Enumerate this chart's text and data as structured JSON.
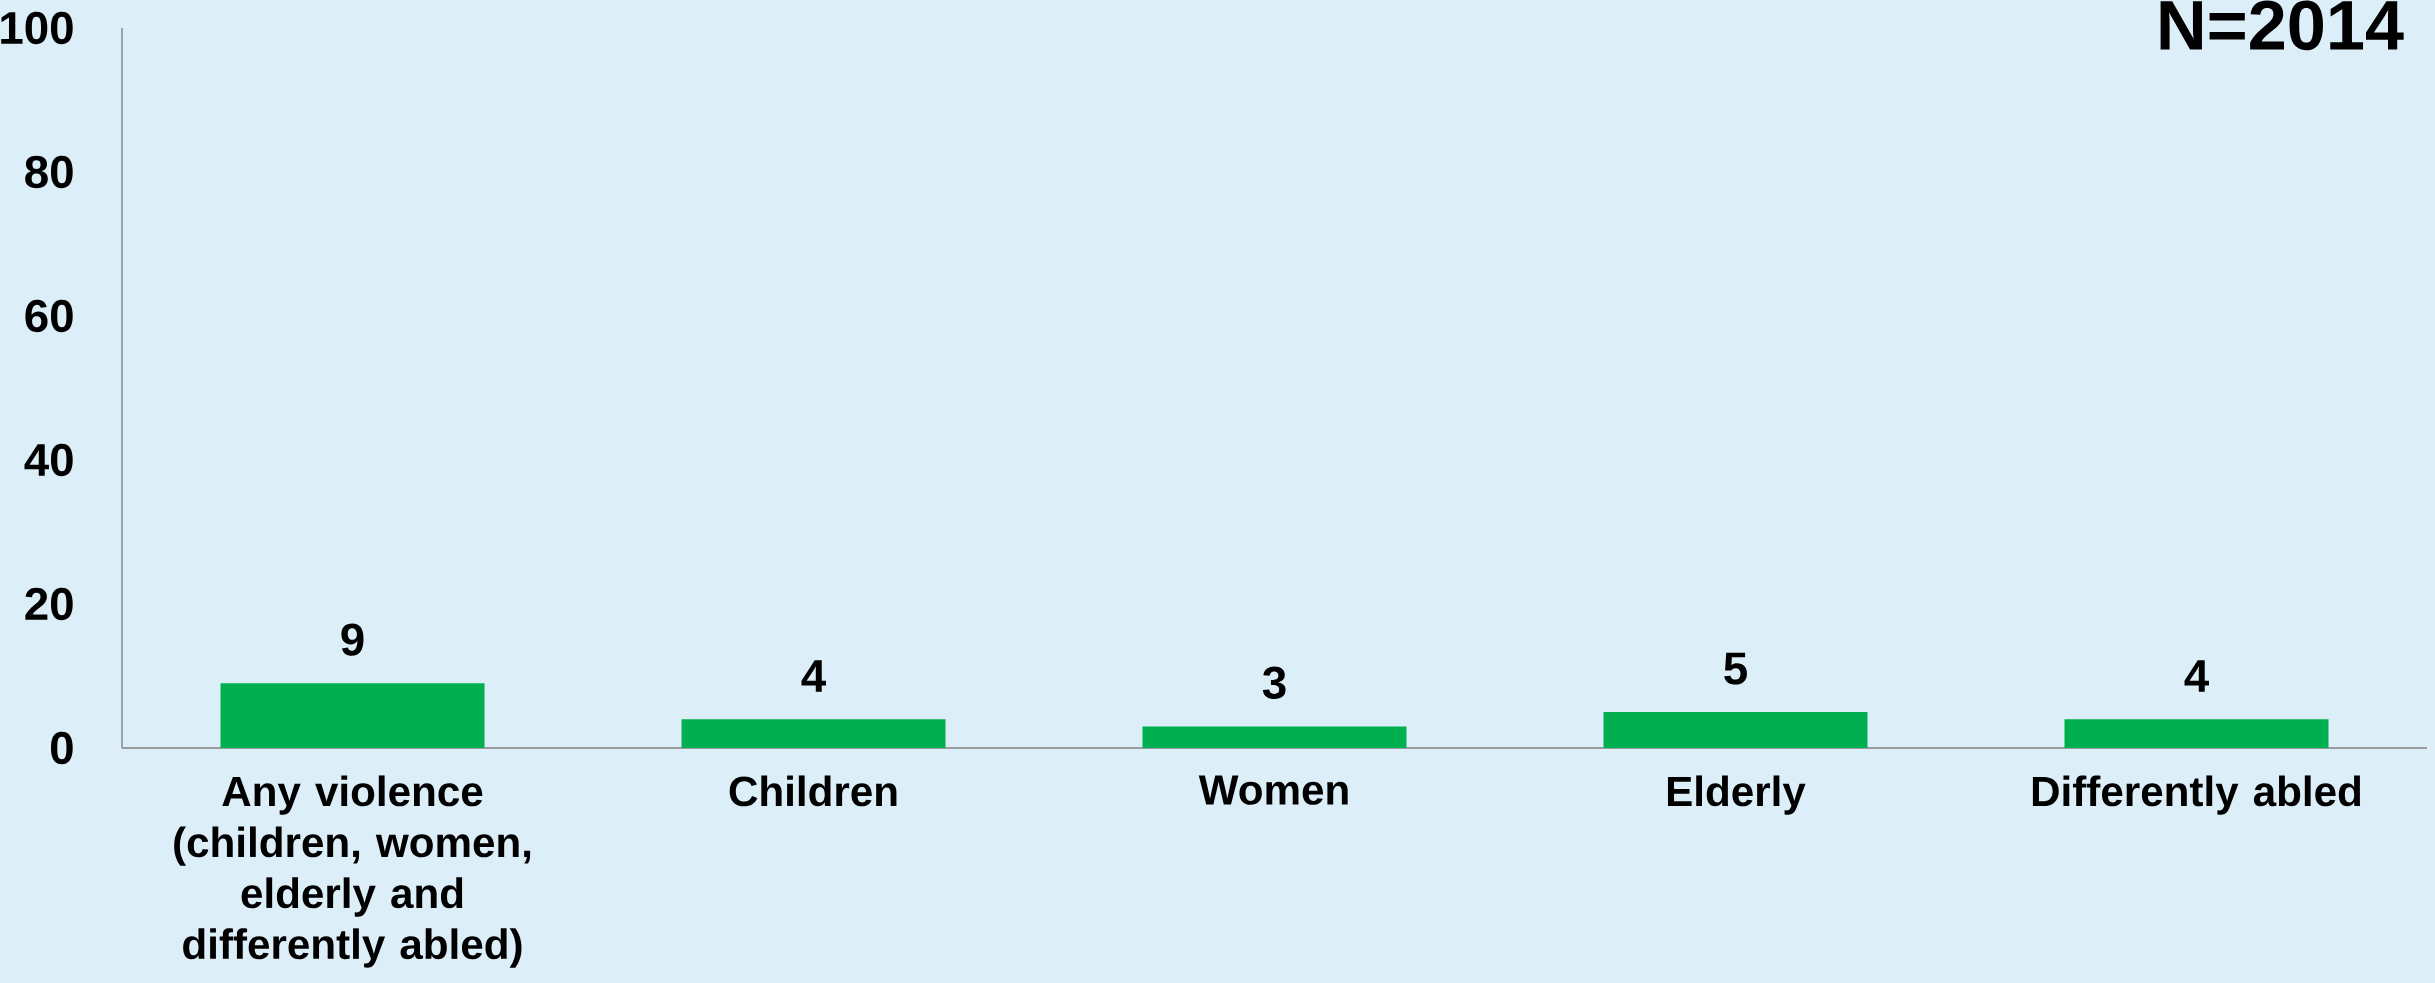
{
  "chart_data": {
    "type": "bar",
    "title": "N=2014",
    "categories": [
      "Any violence (children, women, elderly and differently abled)",
      "Children",
      "Women",
      "Elderly",
      "Differently abled"
    ],
    "values": [
      9,
      4,
      3,
      5,
      4
    ],
    "color": "#00b050",
    "ylim": [
      0,
      100
    ],
    "yticks": [
      0,
      20,
      40,
      60,
      80,
      100
    ],
    "data_labels": true
  }
}
